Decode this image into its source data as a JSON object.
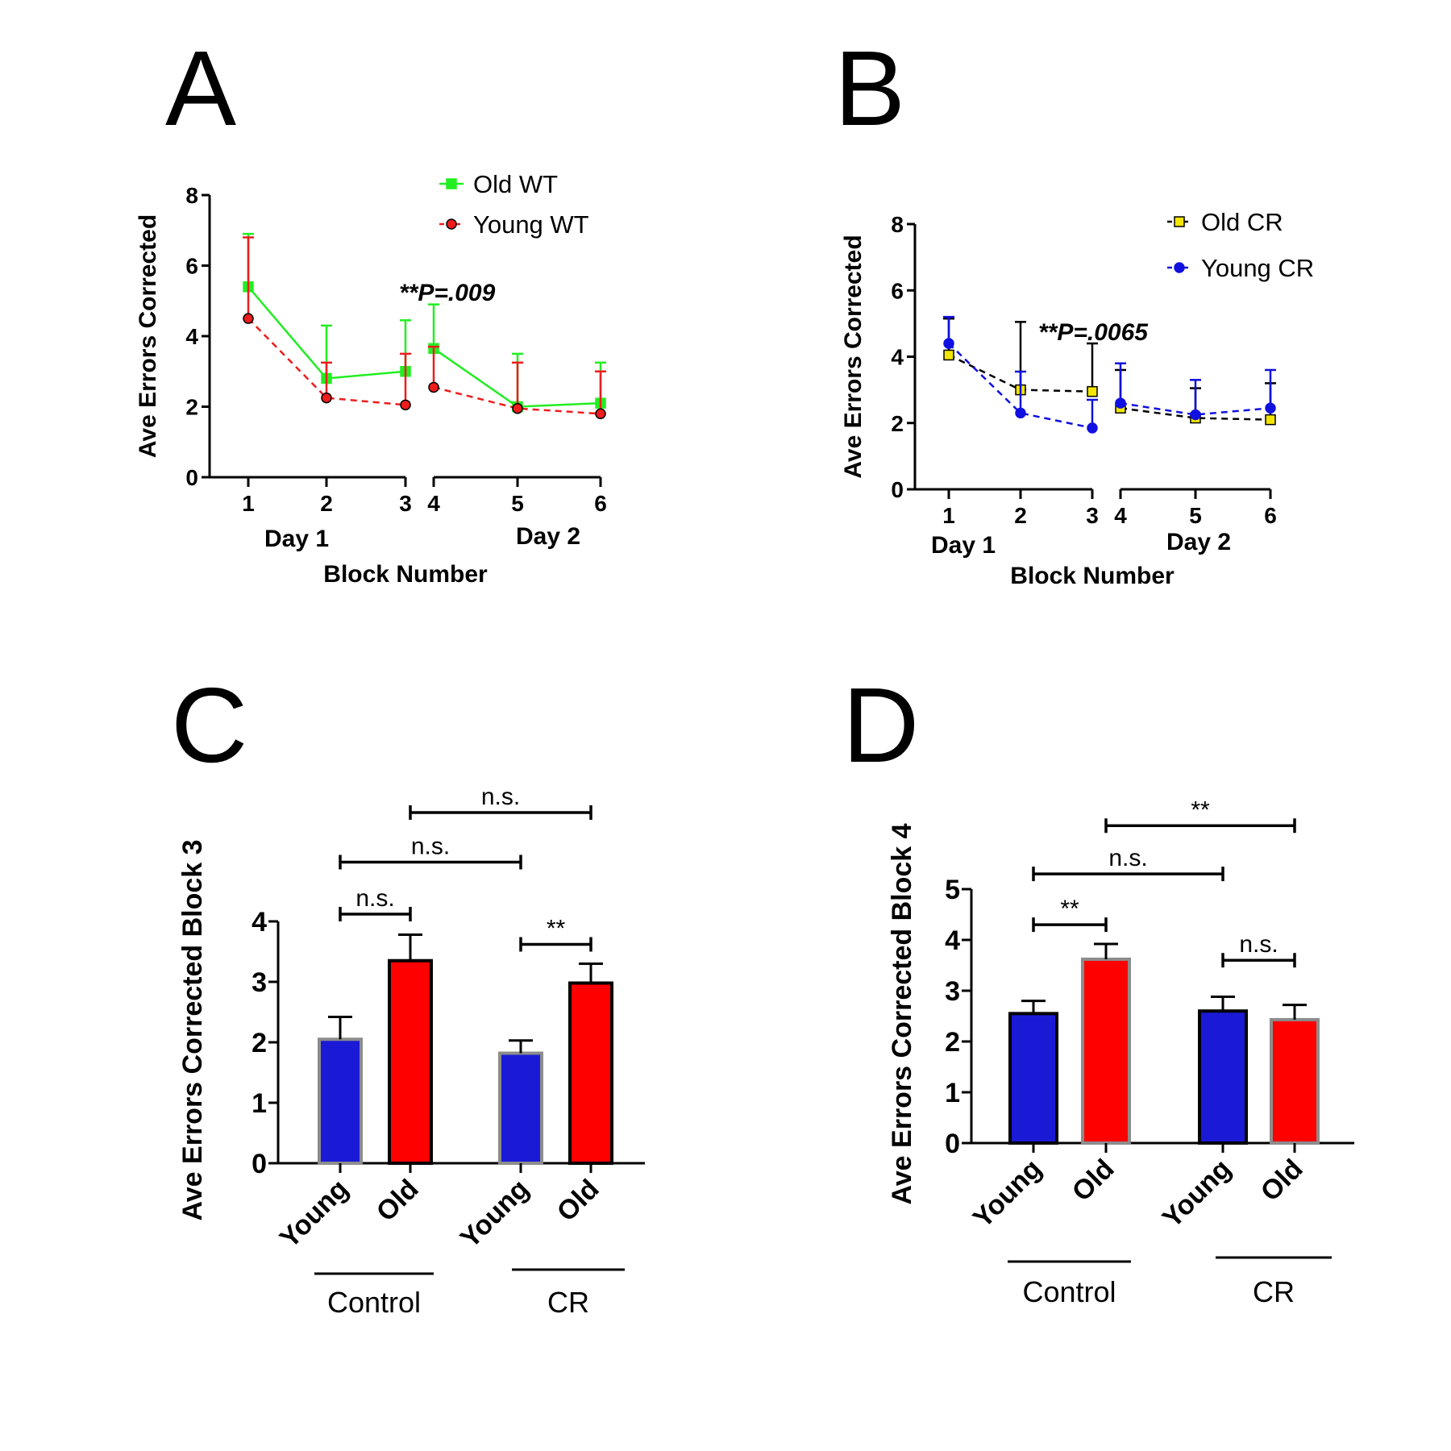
{
  "panels": {
    "A": {
      "letter": "A"
    },
    "B": {
      "letter": "B"
    },
    "C": {
      "letter": "C"
    },
    "D": {
      "letter": "D"
    }
  },
  "chart_data": [
    {
      "id": "A",
      "type": "line",
      "ylabel": "Ave Errors Corrected",
      "xlabel": "Block Number",
      "day_labels": [
        "Day 1",
        "Day 2"
      ],
      "ylim": [
        0,
        8
      ],
      "yticks": [
        "0",
        "2",
        "4",
        "6",
        "8"
      ],
      "x": [
        "1",
        "2",
        "3",
        "4",
        "5",
        "6"
      ],
      "annotation": "**P=.009",
      "series": [
        {
          "name": "Old WT",
          "color": "#22ee22",
          "marker": "square",
          "dash": "solid",
          "values": [
            5.4,
            2.8,
            3.0,
            3.65,
            2.0,
            2.1
          ],
          "error_upper": [
            6.9,
            4.3,
            4.45,
            4.9,
            3.5,
            3.25
          ]
        },
        {
          "name": "Young WT",
          "color": "#ee1c1c",
          "marker": "circle",
          "dash": "dashed",
          "values": [
            4.5,
            2.25,
            2.05,
            2.55,
            1.95,
            1.8
          ],
          "error_upper": [
            6.8,
            3.25,
            3.5,
            3.7,
            3.25,
            3.0
          ]
        }
      ]
    },
    {
      "id": "B",
      "type": "line",
      "ylabel": "Ave Errors Corrected",
      "xlabel": "Block Number",
      "day_labels": [
        "Day 1",
        "Day 2"
      ],
      "ylim": [
        0,
        8
      ],
      "yticks": [
        "0",
        "2",
        "4",
        "6",
        "8"
      ],
      "x": [
        "1",
        "2",
        "3",
        "4",
        "5",
        "6"
      ],
      "annotation": "**P=.0065",
      "series": [
        {
          "name": "Old CR",
          "color": "#000000",
          "fill": "#f2e600",
          "marker": "square",
          "dash": "dashed",
          "values": [
            4.05,
            3.0,
            2.95,
            2.45,
            2.15,
            2.1
          ],
          "error_upper": [
            5.15,
            5.05,
            4.4,
            3.6,
            3.05,
            3.2
          ]
        },
        {
          "name": "Young CR",
          "color": "#1010e0",
          "marker": "circle",
          "dash": "dashed",
          "values": [
            4.4,
            2.3,
            1.85,
            2.6,
            2.25,
            2.45
          ],
          "error_upper": [
            5.2,
            3.55,
            2.7,
            3.8,
            3.3,
            3.6
          ]
        }
      ]
    },
    {
      "id": "C",
      "type": "bar",
      "ylabel": "Ave Errors Corrected Block 3",
      "ylim": [
        0,
        4
      ],
      "yticks": [
        "0",
        "1",
        "2",
        "3",
        "4"
      ],
      "categories": [
        "Young",
        "Old",
        "Young",
        "Old"
      ],
      "groups": [
        "Control",
        "CR"
      ],
      "values": [
        2.05,
        3.35,
        1.82,
        2.98
      ],
      "error_upper": [
        2.42,
        3.78,
        2.03,
        3.3
      ],
      "bar_colors": [
        "#1a1ad6",
        "#ff0000",
        "#1a1ad6",
        "#ff0000"
      ],
      "bar_outlines": [
        "#8c8c8c",
        "#000000",
        "#8c8c8c",
        "#000000"
      ],
      "comparisons": [
        {
          "from": 0,
          "to": 1,
          "label": "n.s.",
          "value": 4.12
        },
        {
          "from": 0,
          "to": 2,
          "label": "n.s.",
          "value": 4.98
        },
        {
          "from": 1,
          "to": 3,
          "label": "n.s.",
          "value": 5.8
        },
        {
          "from": 2,
          "to": 3,
          "label": "**",
          "value": 3.62
        }
      ]
    },
    {
      "id": "D",
      "type": "bar",
      "ylabel": "Ave Errors Corrected Block 4",
      "ylim": [
        0,
        5
      ],
      "yticks": [
        "0",
        "1",
        "2",
        "3",
        "4",
        "5"
      ],
      "categories": [
        "Young",
        "Old",
        "Young",
        "Old"
      ],
      "groups": [
        "Control",
        "CR"
      ],
      "values": [
        2.55,
        3.62,
        2.6,
        2.43
      ],
      "error_upper": [
        2.8,
        3.92,
        2.88,
        2.72
      ],
      "bar_colors": [
        "#1a1ad6",
        "#ff0000",
        "#1a1ad6",
        "#ff0000"
      ],
      "bar_outlines": [
        "#000000",
        "#8c8c8c",
        "#000000",
        "#8c8c8c"
      ],
      "comparisons": [
        {
          "from": 0,
          "to": 1,
          "label": "**",
          "value": 4.3
        },
        {
          "from": 0,
          "to": 2,
          "label": "n.s.",
          "value": 5.3
        },
        {
          "from": 1,
          "to": 3,
          "label": "**",
          "value": 6.25
        },
        {
          "from": 2,
          "to": 3,
          "label": "n.s.",
          "value": 3.6
        }
      ]
    }
  ]
}
